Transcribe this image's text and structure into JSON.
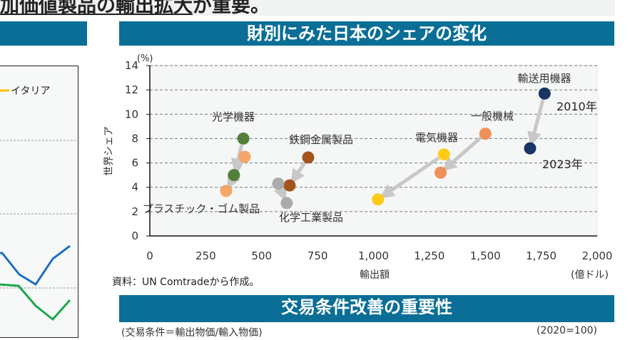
{
  "header": {
    "top_text_underlined": "加価値製品の輸出拡大",
    "top_text_rest": "が重要。",
    "section_title": "財別にみた日本のシェアの変化",
    "next_section_title": "交易条件改善の重要性",
    "next_section_subtitle_left": "(交易条件＝輸出物価/輸入物価)",
    "next_section_subtitle_right": "(2020=100)"
  },
  "left_chart": {
    "legend": [
      {
        "label": "イタリア",
        "color": "#ffc000"
      }
    ],
    "line_colors": [
      "#1f6fbf",
      "#1aa84a"
    ]
  },
  "chart_data": {
    "type": "scatter",
    "title": "財別にみた日本のシェアの変化",
    "xlabel": "輸出額",
    "x_unit": "(億ドル)",
    "ylabel": "世界シェア",
    "y_unit": "(%)",
    "xlim": [
      0,
      2000
    ],
    "ylim": [
      0,
      14
    ],
    "xticks": [
      "0",
      "250",
      "500",
      "750",
      "1,000",
      "1,250",
      "1,500",
      "1,750",
      "2,000"
    ],
    "yticks": [
      "0",
      "2",
      "4",
      "6",
      "8",
      "10",
      "12",
      "14"
    ],
    "grid": "horizontal dashed",
    "annotations": [
      "2010年",
      "2023年"
    ],
    "source": "資料：UN Comtradeから作成。",
    "series": [
      {
        "name": "輸送用機器",
        "color": "#0d2a5c",
        "points": [
          {
            "year": 2010,
            "x": 1765,
            "y": 11.7
          },
          {
            "year": 2023,
            "x": 1700,
            "y": 7.2
          }
        ]
      },
      {
        "name": "一般機械",
        "color": "#ee8a4e",
        "points": [
          {
            "year": 2010,
            "x": 1500,
            "y": 8.4
          },
          {
            "year": 2023,
            "x": 1300,
            "y": 5.2
          }
        ]
      },
      {
        "name": "電気機器",
        "color": "#ffc80a",
        "points": [
          {
            "year": 2010,
            "x": 1315,
            "y": 6.7
          },
          {
            "year": 2023,
            "x": 1020,
            "y": 3.0
          }
        ]
      },
      {
        "name": "光学機器",
        "color": "#4a7a30",
        "points": [
          {
            "year": 2010,
            "x": 418,
            "y": 8.0
          },
          {
            "year": 2023,
            "x": 376,
            "y": 5.0
          }
        ]
      },
      {
        "name": "プラスチック・ゴム製品",
        "color": "#f4a261",
        "points": [
          {
            "year": 2010,
            "x": 424,
            "y": 6.5
          },
          {
            "year": 2023,
            "x": 341,
            "y": 3.7
          }
        ]
      },
      {
        "name": "鉄鋼金属製品",
        "color": "#a04a10",
        "points": [
          {
            "year": 2010,
            "x": 708,
            "y": 6.45
          },
          {
            "year": 2023,
            "x": 625,
            "y": 4.15
          }
        ]
      },
      {
        "name": "化学工業製品",
        "color": "#a6a6a6",
        "points": [
          {
            "year": 2010,
            "x": 574,
            "y": 4.3
          },
          {
            "year": 2023,
            "x": 612,
            "y": 2.7
          }
        ]
      }
    ]
  }
}
